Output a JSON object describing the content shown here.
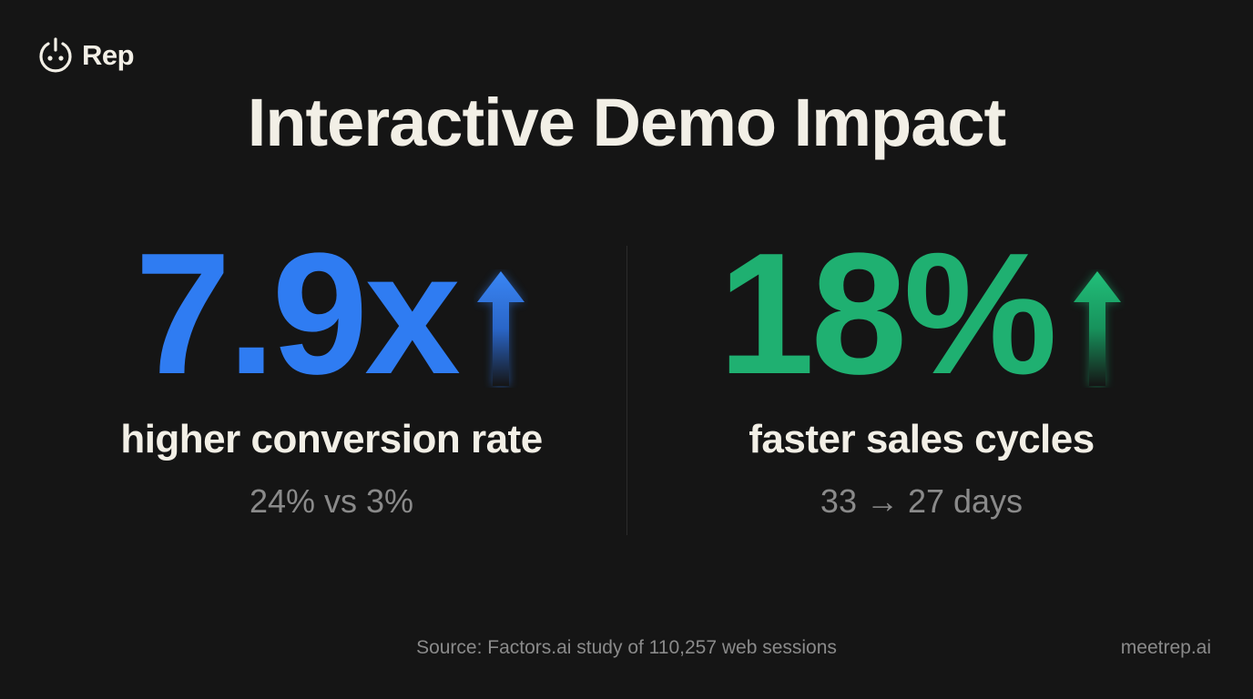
{
  "brand": {
    "name": "Rep",
    "icon": "power-face-icon"
  },
  "title": "Interactive Demo Impact",
  "stats": [
    {
      "value": "7.9x",
      "label": "higher conversion rate",
      "detail": "24% vs 3%",
      "color": "#2f7cf2",
      "icon": "arrow-up-icon"
    },
    {
      "value": "18%",
      "label": "faster sales cycles",
      "detail": "33 → 27 days",
      "color": "#1fb071",
      "icon": "arrow-up-icon"
    }
  ],
  "footer": {
    "source": "Source: Factors.ai study of 110,257 web sessions",
    "site": "meetrep.ai"
  }
}
